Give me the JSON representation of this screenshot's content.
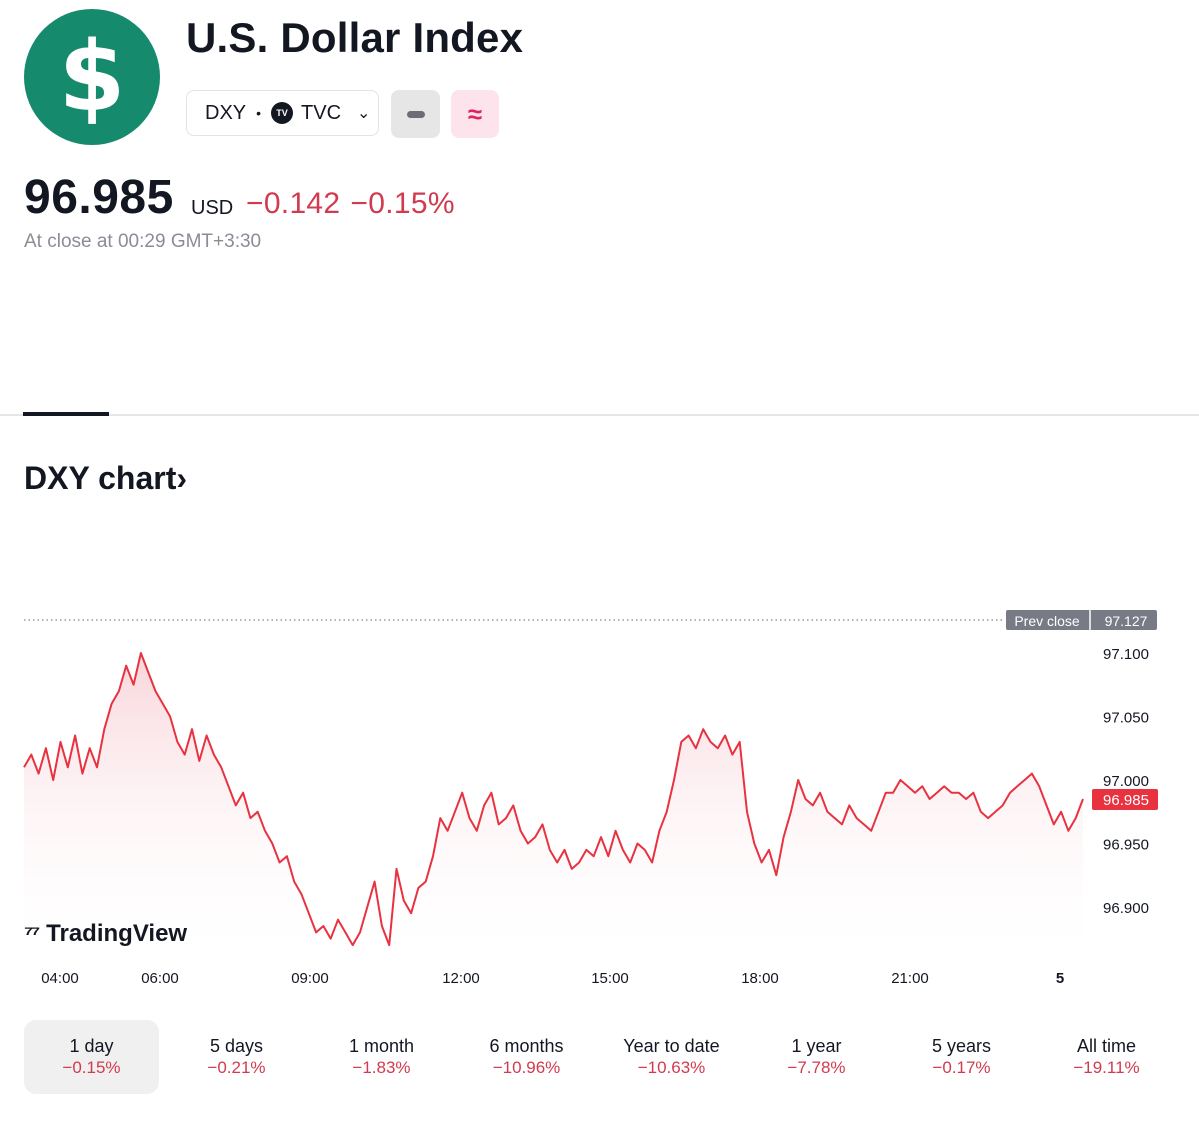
{
  "header": {
    "logo_glyph": "$",
    "title": "U.S. Dollar Index",
    "symbol": "DXY",
    "exchange_badge": "TV",
    "exchange": "TVC",
    "icons": [
      "chevron-down-icon",
      "minus-icon",
      "wave-icon"
    ]
  },
  "quote": {
    "price": "96.985",
    "currency": "USD",
    "change": "−0.142",
    "change_percent": "−0.15%",
    "status": "At close at 00:29 GMT+3:30"
  },
  "section": {
    "title": "DXY chart›"
  },
  "chart_data": {
    "type": "line",
    "x_ticks": [
      "04:00",
      "06:00",
      "09:00",
      "12:00",
      "15:00",
      "18:00",
      "21:00",
      "5"
    ],
    "y_ticks": [
      "97.100",
      "97.050",
      "97.000",
      "96.950",
      "96.900"
    ],
    "ylim": [
      96.87,
      97.13
    ],
    "prev_close": {
      "label": "Prev close",
      "value": 97.127,
      "text": "97.127"
    },
    "last": {
      "value": 96.985,
      "text": "96.985"
    },
    "series": [
      {
        "values": [
          97.01,
          97.02,
          97.005,
          97.025,
          97.0,
          97.03,
          97.01,
          97.035,
          97.005,
          97.025,
          97.01,
          97.04,
          97.06,
          97.07,
          97.09,
          97.075,
          97.1,
          97.085,
          97.07,
          97.06,
          97.05,
          97.03,
          97.02,
          97.04,
          97.015,
          97.035,
          97.02,
          97.01,
          96.995,
          96.98,
          96.99,
          96.97,
          96.975,
          96.96,
          96.95,
          96.935,
          96.94,
          96.92,
          96.91,
          96.895,
          96.88,
          96.885,
          96.875,
          96.89,
          96.88,
          96.87,
          96.88,
          96.9,
          96.92,
          96.885,
          96.87,
          96.93,
          96.905,
          96.895,
          96.915,
          96.92,
          96.94,
          96.97,
          96.96,
          96.975,
          96.99,
          96.97,
          96.96,
          96.98,
          96.99,
          96.965,
          96.97,
          96.98,
          96.96,
          96.95,
          96.955,
          96.965,
          96.945,
          96.935,
          96.945,
          96.93,
          96.935,
          96.945,
          96.94,
          96.955,
          96.94,
          96.96,
          96.945,
          96.935,
          96.95,
          96.945,
          96.935,
          96.96,
          96.975,
          97.0,
          97.03,
          97.035,
          97.025,
          97.04,
          97.03,
          97.025,
          97.035,
          97.02,
          97.03,
          96.975,
          96.95,
          96.935,
          96.945,
          96.925,
          96.955,
          96.975,
          97.0,
          96.985,
          96.98,
          96.99,
          96.975,
          96.97,
          96.965,
          96.98,
          96.97,
          96.965,
          96.96,
          96.975,
          96.99,
          96.99,
          97.0,
          96.995,
          96.99,
          96.995,
          96.985,
          96.99,
          96.995,
          96.99,
          96.99,
          96.985,
          96.99,
          96.975,
          96.97,
          96.975,
          96.98,
          96.99,
          96.995,
          97.0,
          97.005,
          96.995,
          96.98,
          96.965,
          96.975,
          96.96,
          96.97,
          96.985
        ]
      }
    ]
  },
  "periods": [
    {
      "label": "1 day",
      "change": "−0.15%",
      "active": true
    },
    {
      "label": "5 days",
      "change": "−0.21%"
    },
    {
      "label": "1 month",
      "change": "−1.83%"
    },
    {
      "label": "6 months",
      "change": "−10.96%"
    },
    {
      "label": "Year to date",
      "change": "−10.63%"
    },
    {
      "label": "1 year",
      "change": "−7.78%"
    },
    {
      "label": "5 years",
      "change": "−0.17%"
    },
    {
      "label": "All time",
      "change": "−19.11%"
    }
  ],
  "watermark": "TradingView",
  "colors": {
    "logo_bg": "#168a6d",
    "negative": "#d13b4f",
    "line": "#e8323f",
    "prev_close_tag": "#787b86",
    "pink_button_bg": "#fde4ec"
  }
}
